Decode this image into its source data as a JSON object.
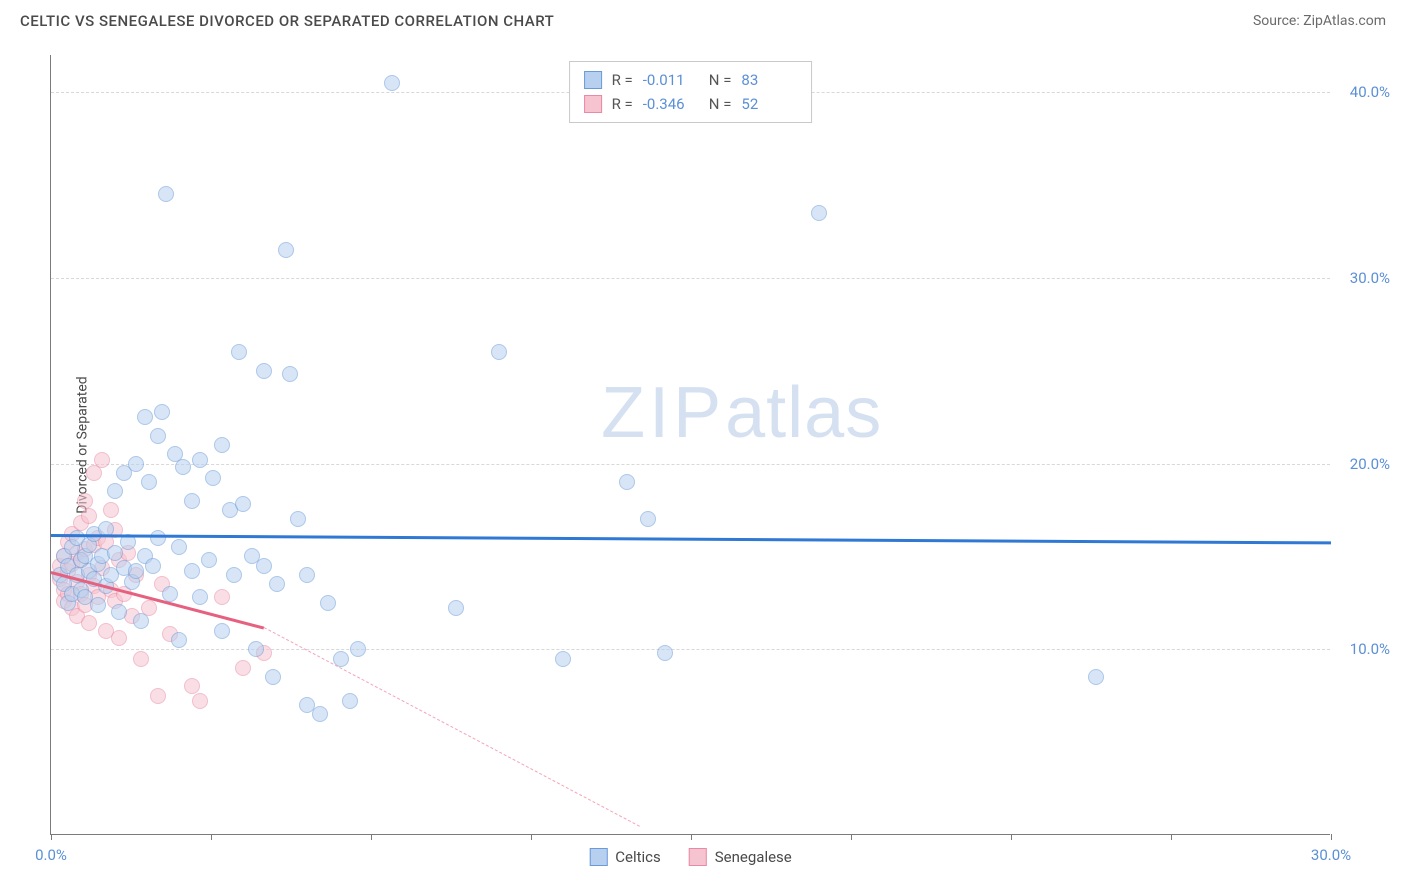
{
  "header": {
    "title": "CELTIC VS SENEGALESE DIVORCED OR SEPARATED CORRELATION CHART",
    "source_prefix": "Source: ",
    "source_link": "ZipAtlas.com"
  },
  "chart": {
    "type": "scatter",
    "y_axis_label": "Divorced or Separated",
    "xlim": [
      0,
      30
    ],
    "ylim": [
      0,
      42
    ],
    "x_ticks": [
      0,
      3.75,
      7.5,
      11.25,
      15,
      18.75,
      22.5,
      26.25,
      30
    ],
    "x_tick_labels": {
      "0": "0.0%",
      "30": "30.0%"
    },
    "y_gridlines": [
      10,
      20,
      30,
      40
    ],
    "y_tick_labels": {
      "10": "10.0%",
      "20": "20.0%",
      "30": "30.0%",
      "40": "40.0%"
    },
    "background_color": "#ffffff",
    "grid_color": "#d8d8d8",
    "axis_color": "#7a7a7a",
    "label_color": "#5b8fd6",
    "watermark_text": "ZIPatlas",
    "watermark_color": "#d5e1f1"
  },
  "series": {
    "celtics": {
      "label": "Celtics",
      "color_fill": "#b7d0ef",
      "color_stroke": "#6a9bd8",
      "trend_color": "#2f78d4",
      "R": "-0.011",
      "N": "83",
      "trend": {
        "x1": 0,
        "y1": 16.2,
        "x2": 30,
        "y2": 15.8
      },
      "points": [
        [
          0.2,
          14.0
        ],
        [
          0.3,
          13.5
        ],
        [
          0.3,
          15.0
        ],
        [
          0.4,
          12.5
        ],
        [
          0.4,
          14.5
        ],
        [
          0.5,
          13.0
        ],
        [
          0.5,
          15.5
        ],
        [
          0.6,
          14.0
        ],
        [
          0.6,
          16.0
        ],
        [
          0.7,
          13.2
        ],
        [
          0.7,
          14.8
        ],
        [
          0.8,
          15.0
        ],
        [
          0.8,
          12.8
        ],
        [
          0.9,
          14.2
        ],
        [
          0.9,
          15.6
        ],
        [
          1.0,
          13.8
        ],
        [
          1.0,
          16.2
        ],
        [
          1.1,
          14.6
        ],
        [
          1.1,
          12.4
        ],
        [
          1.2,
          15.0
        ],
        [
          1.3,
          13.4
        ],
        [
          1.3,
          16.5
        ],
        [
          1.4,
          14.0
        ],
        [
          1.5,
          15.2
        ],
        [
          1.5,
          18.5
        ],
        [
          1.6,
          12.0
        ],
        [
          1.7,
          14.4
        ],
        [
          1.7,
          19.5
        ],
        [
          1.8,
          15.8
        ],
        [
          1.9,
          13.6
        ],
        [
          2.0,
          14.2
        ],
        [
          2.0,
          20.0
        ],
        [
          2.1,
          11.5
        ],
        [
          2.2,
          22.5
        ],
        [
          2.2,
          15.0
        ],
        [
          2.3,
          19.0
        ],
        [
          2.4,
          14.5
        ],
        [
          2.5,
          21.5
        ],
        [
          2.5,
          16.0
        ],
        [
          2.6,
          22.8
        ],
        [
          2.7,
          34.5
        ],
        [
          2.8,
          13.0
        ],
        [
          2.9,
          20.5
        ],
        [
          3.0,
          15.5
        ],
        [
          3.0,
          10.5
        ],
        [
          3.1,
          19.8
        ],
        [
          3.3,
          18.0
        ],
        [
          3.3,
          14.2
        ],
        [
          3.5,
          12.8
        ],
        [
          3.5,
          20.2
        ],
        [
          3.7,
          14.8
        ],
        [
          3.8,
          19.2
        ],
        [
          4.0,
          21.0
        ],
        [
          4.0,
          11.0
        ],
        [
          4.2,
          17.5
        ],
        [
          4.3,
          14.0
        ],
        [
          4.4,
          26.0
        ],
        [
          4.5,
          17.8
        ],
        [
          4.7,
          15.0
        ],
        [
          4.8,
          10.0
        ],
        [
          5.0,
          25.0
        ],
        [
          5.0,
          14.5
        ],
        [
          5.2,
          8.5
        ],
        [
          5.3,
          13.5
        ],
        [
          5.5,
          31.5
        ],
        [
          5.6,
          24.8
        ],
        [
          5.8,
          17.0
        ],
        [
          6.0,
          14.0
        ],
        [
          6.0,
          7.0
        ],
        [
          6.3,
          6.5
        ],
        [
          6.5,
          12.5
        ],
        [
          6.8,
          9.5
        ],
        [
          7.0,
          7.2
        ],
        [
          7.2,
          10.0
        ],
        [
          8.0,
          40.5
        ],
        [
          9.5,
          12.2
        ],
        [
          10.5,
          26.0
        ],
        [
          12.0,
          9.5
        ],
        [
          13.5,
          19.0
        ],
        [
          14.4,
          9.8
        ],
        [
          18.0,
          33.5
        ],
        [
          24.5,
          8.5
        ],
        [
          14.0,
          17.0
        ]
      ]
    },
    "senegalese": {
      "label": "Senegalese",
      "color_fill": "#f6c4d0",
      "color_stroke": "#e88aa3",
      "trend_color": "#e6607f",
      "R": "-0.346",
      "N": "52",
      "trend_solid": {
        "x1": 0,
        "y1": 14.2,
        "x2": 5.0,
        "y2": 11.2
      },
      "trend_dashed": {
        "x1": 5.0,
        "y1": 11.2,
        "x2": 13.8,
        "y2": 0.5
      },
      "points": [
        [
          0.2,
          13.8
        ],
        [
          0.2,
          14.5
        ],
        [
          0.3,
          13.2
        ],
        [
          0.3,
          15.0
        ],
        [
          0.3,
          12.6
        ],
        [
          0.4,
          14.2
        ],
        [
          0.4,
          15.8
        ],
        [
          0.4,
          13.0
        ],
        [
          0.5,
          14.6
        ],
        [
          0.5,
          12.2
        ],
        [
          0.5,
          16.2
        ],
        [
          0.6,
          13.6
        ],
        [
          0.6,
          15.2
        ],
        [
          0.6,
          11.8
        ],
        [
          0.7,
          14.8
        ],
        [
          0.7,
          13.0
        ],
        [
          0.7,
          16.8
        ],
        [
          0.8,
          12.4
        ],
        [
          0.8,
          15.4
        ],
        [
          0.8,
          18.0
        ],
        [
          0.9,
          14.0
        ],
        [
          0.9,
          11.4
        ],
        [
          0.9,
          17.2
        ],
        [
          1.0,
          13.4
        ],
        [
          1.0,
          19.5
        ],
        [
          1.0,
          15.6
        ],
        [
          1.1,
          12.8
        ],
        [
          1.1,
          16.0
        ],
        [
          1.2,
          14.4
        ],
        [
          1.2,
          20.2
        ],
        [
          1.3,
          11.0
        ],
        [
          1.3,
          15.8
        ],
        [
          1.4,
          13.2
        ],
        [
          1.4,
          17.5
        ],
        [
          1.5,
          12.6
        ],
        [
          1.5,
          16.4
        ],
        [
          1.6,
          14.8
        ],
        [
          1.6,
          10.6
        ],
        [
          1.7,
          13.0
        ],
        [
          1.8,
          15.2
        ],
        [
          1.9,
          11.8
        ],
        [
          2.0,
          14.0
        ],
        [
          2.1,
          9.5
        ],
        [
          2.3,
          12.2
        ],
        [
          2.5,
          7.5
        ],
        [
          2.6,
          13.5
        ],
        [
          2.8,
          10.8
        ],
        [
          3.3,
          8.0
        ],
        [
          3.5,
          7.2
        ],
        [
          4.0,
          12.8
        ],
        [
          4.5,
          9.0
        ],
        [
          5.0,
          9.8
        ]
      ]
    }
  },
  "legend_top": {
    "rows": [
      {
        "swatch": "blue",
        "R_label": "R =",
        "R": "-0.011",
        "N_label": "N =",
        "N": "83"
      },
      {
        "swatch": "pink",
        "R_label": "R =",
        "R": "-0.346",
        "N_label": "N =",
        "N": "52"
      }
    ]
  },
  "legend_bottom": [
    {
      "swatch": "blue",
      "label": "Celtics"
    },
    {
      "swatch": "pink",
      "label": "Senegalese"
    }
  ]
}
